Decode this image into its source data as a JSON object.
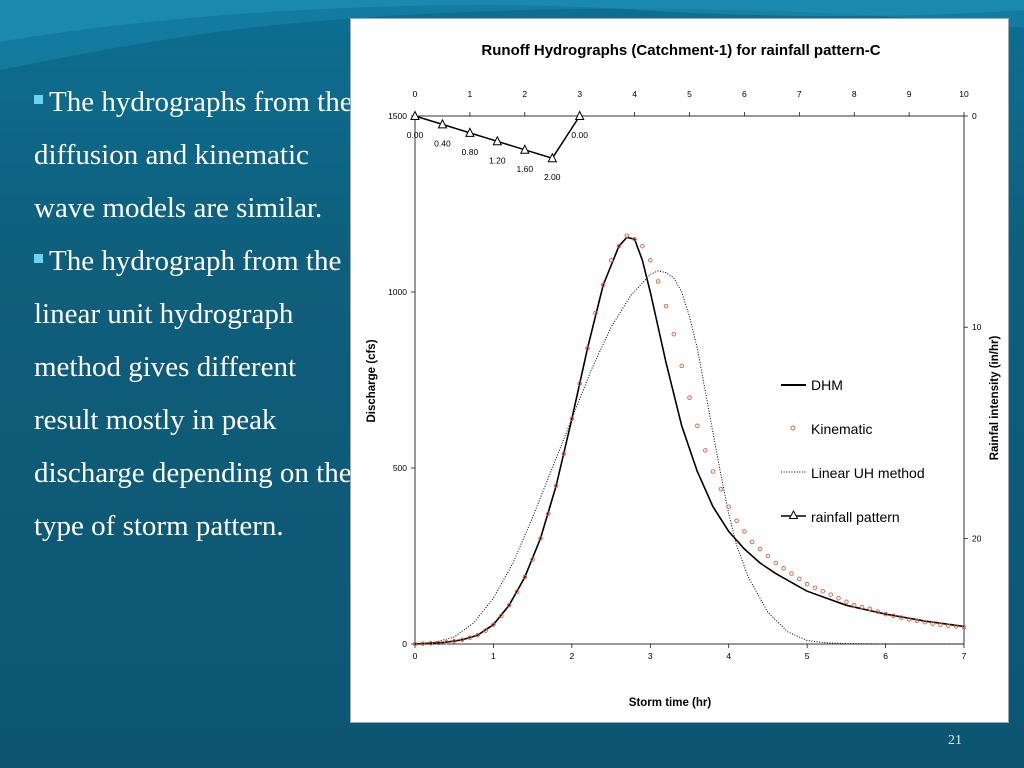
{
  "slide": {
    "bullets": [
      "The hydrographs from the diffusion and kinematic wave models are similar.",
      "The hydrograph from the linear unit hydrograph method gives different result mostly in peak discharge depending on the type of storm pattern."
    ],
    "page_number": "21"
  },
  "colors": {
    "background": "#0f5e7b",
    "text": "#ffffff",
    "bullet_marker": "#6ad2f2",
    "kinematic_marker": "#e0603c"
  },
  "chart_data": {
    "type": "line",
    "title": "Runoff Hydrographs (Catchment-1) for rainfall pattern-C",
    "xlabel": "Storm time (hr)",
    "ylabel": "Discharge (cfs)",
    "y2label": "Rainfal intensity (in/hr)",
    "xlim": [
      0,
      7
    ],
    "ylim": [
      0,
      1500
    ],
    "x_ticks": [
      "0",
      "1",
      "2",
      "3",
      "4",
      "5",
      "6",
      "7"
    ],
    "y_ticks": [
      "0",
      "500",
      "1000",
      "1500"
    ],
    "x2lim": [
      0,
      10
    ],
    "y2lim": [
      0,
      25
    ],
    "y2_inverted": true,
    "x2_ticks": [
      "0",
      "1",
      "2",
      "3",
      "4",
      "5",
      "6",
      "7",
      "8",
      "9",
      "10"
    ],
    "y2_ticks": [
      "0",
      "10",
      "20"
    ],
    "legend": {
      "position": "right",
      "entries": [
        "DHM",
        "Kinematic",
        "Linear UH method",
        "rainfall pattern"
      ]
    },
    "series": [
      {
        "name": "DHM",
        "style": "solid",
        "x": [
          0,
          0.2,
          0.4,
          0.6,
          0.8,
          1.0,
          1.2,
          1.4,
          1.6,
          1.8,
          2.0,
          2.2,
          2.4,
          2.6,
          2.7,
          2.8,
          2.9,
          3.0,
          3.2,
          3.4,
          3.6,
          3.8,
          4.0,
          4.2,
          4.4,
          4.6,
          4.8,
          5.0,
          5.5,
          6.0,
          6.5,
          7.0
        ],
        "y": [
          0,
          2,
          5,
          12,
          25,
          55,
          110,
          190,
          300,
          450,
          640,
          840,
          1020,
          1130,
          1155,
          1150,
          1090,
          1000,
          800,
          620,
          490,
          390,
          320,
          270,
          230,
          200,
          175,
          150,
          110,
          85,
          65,
          50
        ]
      },
      {
        "name": "Kinematic",
        "style": "markers",
        "x": [
          0,
          0.1,
          0.2,
          0.3,
          0.4,
          0.5,
          0.6,
          0.7,
          0.8,
          0.9,
          1.0,
          1.1,
          1.2,
          1.3,
          1.4,
          1.5,
          1.6,
          1.7,
          1.8,
          1.9,
          2.0,
          2.1,
          2.2,
          2.3,
          2.4,
          2.5,
          2.6,
          2.7,
          2.8,
          2.9,
          3.0,
          3.1,
          3.2,
          3.3,
          3.4,
          3.5,
          3.6,
          3.7,
          3.8,
          3.9,
          4.0,
          4.1,
          4.2,
          4.3,
          4.4,
          4.5,
          4.6,
          4.7,
          4.8,
          4.9,
          5.0,
          5.1,
          5.2,
          5.3,
          5.4,
          5.5,
          5.6,
          5.7,
          5.8,
          5.9,
          6.0,
          6.1,
          6.2,
          6.3,
          6.4,
          6.5,
          6.6,
          6.7,
          6.8,
          6.9,
          7.0
        ],
        "y": [
          0,
          1,
          2,
          3,
          5,
          8,
          12,
          18,
          25,
          38,
          55,
          80,
          110,
          148,
          190,
          240,
          300,
          370,
          450,
          540,
          640,
          740,
          840,
          940,
          1020,
          1090,
          1130,
          1160,
          1150,
          1130,
          1090,
          1030,
          960,
          880,
          790,
          700,
          620,
          550,
          490,
          440,
          390,
          350,
          320,
          290,
          270,
          250,
          230,
          215,
          200,
          185,
          170,
          160,
          150,
          140,
          130,
          120,
          110,
          105,
          100,
          92,
          85,
          80,
          75,
          70,
          66,
          62,
          58,
          55,
          52,
          50,
          48
        ]
      },
      {
        "name": "Linear UH method",
        "style": "dotted",
        "x": [
          0,
          0.25,
          0.5,
          0.75,
          1.0,
          1.25,
          1.5,
          1.75,
          2.0,
          2.25,
          2.5,
          2.75,
          3.0,
          3.1,
          3.2,
          3.3,
          3.4,
          3.5,
          3.6,
          3.7,
          3.8,
          3.9,
          4.0,
          4.1,
          4.25,
          4.5,
          4.75,
          5.0,
          5.25,
          5.5,
          6.0,
          7.0
        ],
        "y": [
          0,
          5,
          20,
          60,
          130,
          230,
          360,
          500,
          640,
          780,
          900,
          990,
          1050,
          1060,
          1055,
          1040,
          1000,
          930,
          840,
          720,
          600,
          480,
          370,
          280,
          190,
          90,
          35,
          10,
          3,
          1,
          0,
          0
        ]
      },
      {
        "name": "rainfall pattern",
        "style": "line-triangle",
        "axis": "secondary",
        "x": [
          0,
          0.5,
          1.0,
          1.5,
          2.0,
          2.5,
          3.0
        ],
        "y": [
          0.0,
          0.4,
          0.8,
          1.2,
          1.6,
          2.0,
          0.0
        ],
        "labels": [
          "0.00",
          "0.40",
          "0.80",
          "1.20",
          "1.60",
          "2.00",
          "0.00"
        ]
      }
    ]
  }
}
